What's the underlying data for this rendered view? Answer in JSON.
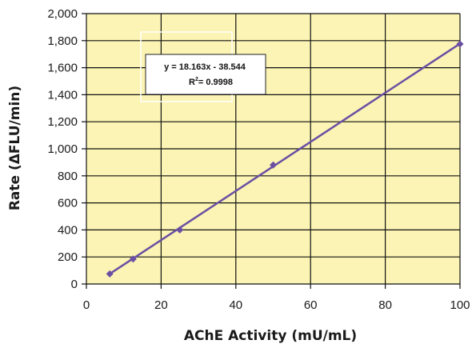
{
  "chart_data": {
    "type": "scatter",
    "title": "",
    "xlabel": "AChE Activity (mU/mL)",
    "ylabel": "Rate (ΔFLU/min)",
    "xlim": [
      0,
      100
    ],
    "ylim": [
      0,
      2000
    ],
    "x_ticks": [
      0,
      20,
      40,
      60,
      80,
      100
    ],
    "y_ticks": [
      0,
      200,
      400,
      600,
      800,
      1000,
      1200,
      1400,
      1600,
      1800,
      2000
    ],
    "x_tick_labels": [
      "0",
      "20",
      "40",
      "60",
      "80",
      "100"
    ],
    "y_tick_labels": [
      "0",
      "200",
      "400",
      "600",
      "800",
      "1,000",
      "1,200",
      "1,400",
      "1,600",
      "1,800",
      "2,000"
    ],
    "grid": true,
    "background_color": "#fbf4b4",
    "series": [
      {
        "x": [
          6.25,
          12.5,
          25,
          50,
          100
        ],
        "y": [
          75,
          185,
          400,
          880,
          1775
        ],
        "color": "#6a4fa3",
        "marker": "diamond"
      }
    ],
    "trendline": {
      "slope": 18.163,
      "intercept": -38.544,
      "x_range": [
        6.25,
        100
      ],
      "color": "#6a4fa3"
    },
    "annotations": {
      "equation": "y = 18.163x - 38.544",
      "r2_label": "R",
      "r2_exp": "2",
      "r2_value": "= 0.9998"
    }
  }
}
